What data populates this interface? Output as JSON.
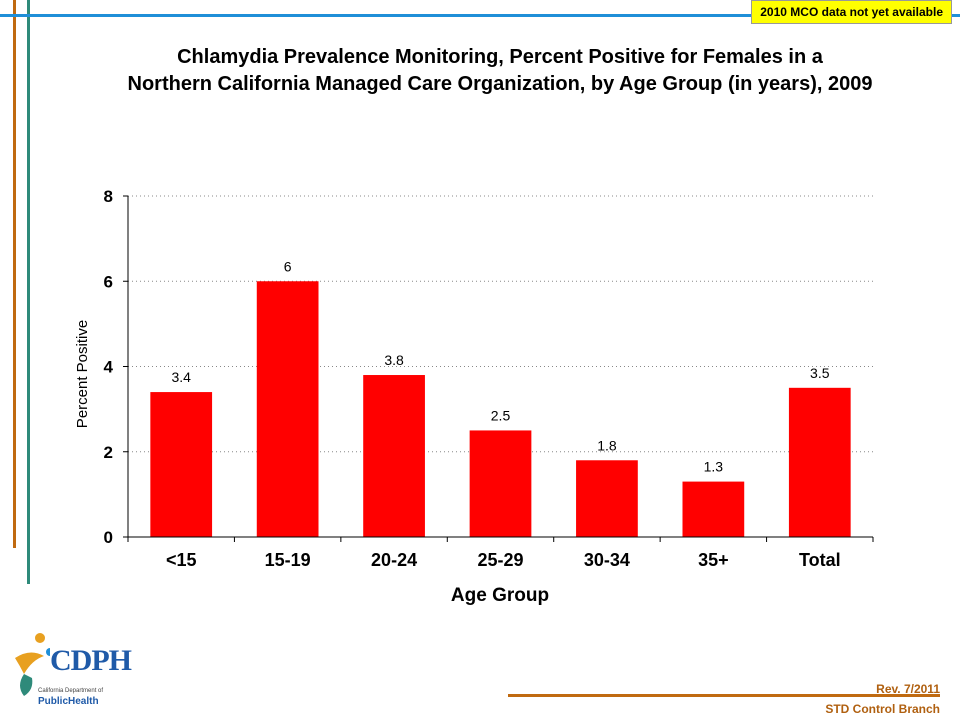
{
  "notice": "2010 MCO data not yet available",
  "chart_data": {
    "type": "bar",
    "title_line1": "Chlamydia Prevalence Monitoring, Percent Positive for Females in a",
    "title_line2": "Northern California Managed Care Organization, by Age Group (in years), 2009",
    "xlabel": "Age Group",
    "ylabel": "Percent Positive",
    "categories": [
      "<15",
      "15-19",
      "20-24",
      "25-29",
      "30-34",
      "35+",
      "Total"
    ],
    "values": [
      3.4,
      6,
      3.8,
      2.5,
      1.8,
      1.3,
      3.5
    ],
    "data_labels": [
      "3.4",
      "6",
      "3.8",
      "2.5",
      "1.8",
      "1.3",
      "3.5"
    ],
    "ylim": [
      0,
      8
    ],
    "yticks": [
      0,
      2,
      4,
      6,
      8
    ],
    "grid": true,
    "legend": "none",
    "bar_color": "#ff0000"
  },
  "footer": {
    "revision": "Rev. 7/2011",
    "branch": "STD Control Branch"
  },
  "logo": {
    "name": "CDPH",
    "subtitle": "California Department of",
    "public": "Public",
    "health": "Health"
  },
  "colors": {
    "blue_line": "#1f8fd8",
    "orange_line": "#c06a10",
    "teal_line": "#2e8a7a"
  }
}
